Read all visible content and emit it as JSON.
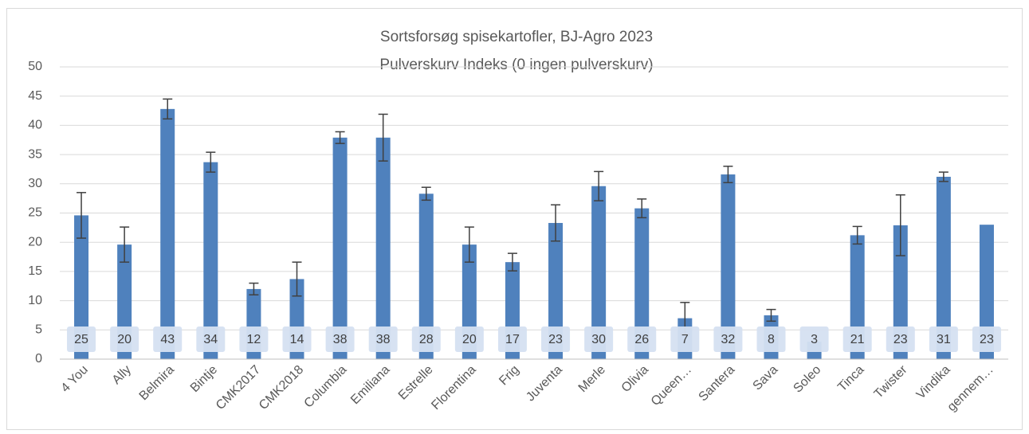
{
  "chart_data": {
    "type": "bar",
    "title": "Sortsforsøg spisekartofler, BJ-Agro 2023",
    "subtitle": "Pulverskurv Indeks (0 ingen pulverskurv)",
    "categories": [
      "4 You",
      "Ally",
      "Belmira",
      "Bintje",
      "CMK2017",
      "CMK2018",
      "Columbia",
      "Emiliana",
      "Estrelle",
      "Florentina",
      "Frig",
      "Juventa",
      "Merle",
      "Olivia",
      "Queen…",
      "Santera",
      "Sava",
      "Soleo",
      "Tinca",
      "Twister",
      "Vindika",
      "gennem…"
    ],
    "values": [
      24.6,
      19.6,
      42.8,
      33.7,
      12.0,
      13.7,
      37.9,
      37.9,
      28.3,
      19.6,
      16.6,
      23.3,
      29.6,
      25.8,
      7.0,
      31.6,
      7.5,
      3,
      21.2,
      22.9,
      31.2,
      23.0
    ],
    "value_labels": [
      "25",
      "20",
      "43",
      "34",
      "12",
      "14",
      "38",
      "38",
      "28",
      "20",
      "17",
      "23",
      "30",
      "26",
      "7",
      "32",
      "8",
      "3",
      "21",
      "23",
      "31",
      "23"
    ],
    "errors": [
      3.9,
      3.0,
      1.7,
      1.7,
      1.0,
      2.9,
      1.0,
      4.0,
      1.1,
      3.0,
      1.5,
      3.1,
      2.5,
      1.6,
      2.7,
      1.4,
      1.0,
      null,
      1.5,
      5.2,
      0.8,
      null
    ],
    "color": "#4f81bd",
    "ylim": [
      0,
      50
    ],
    "yticks": [
      0,
      5,
      10,
      15,
      20,
      25,
      30,
      35,
      40,
      45,
      50
    ],
    "grid": true
  }
}
